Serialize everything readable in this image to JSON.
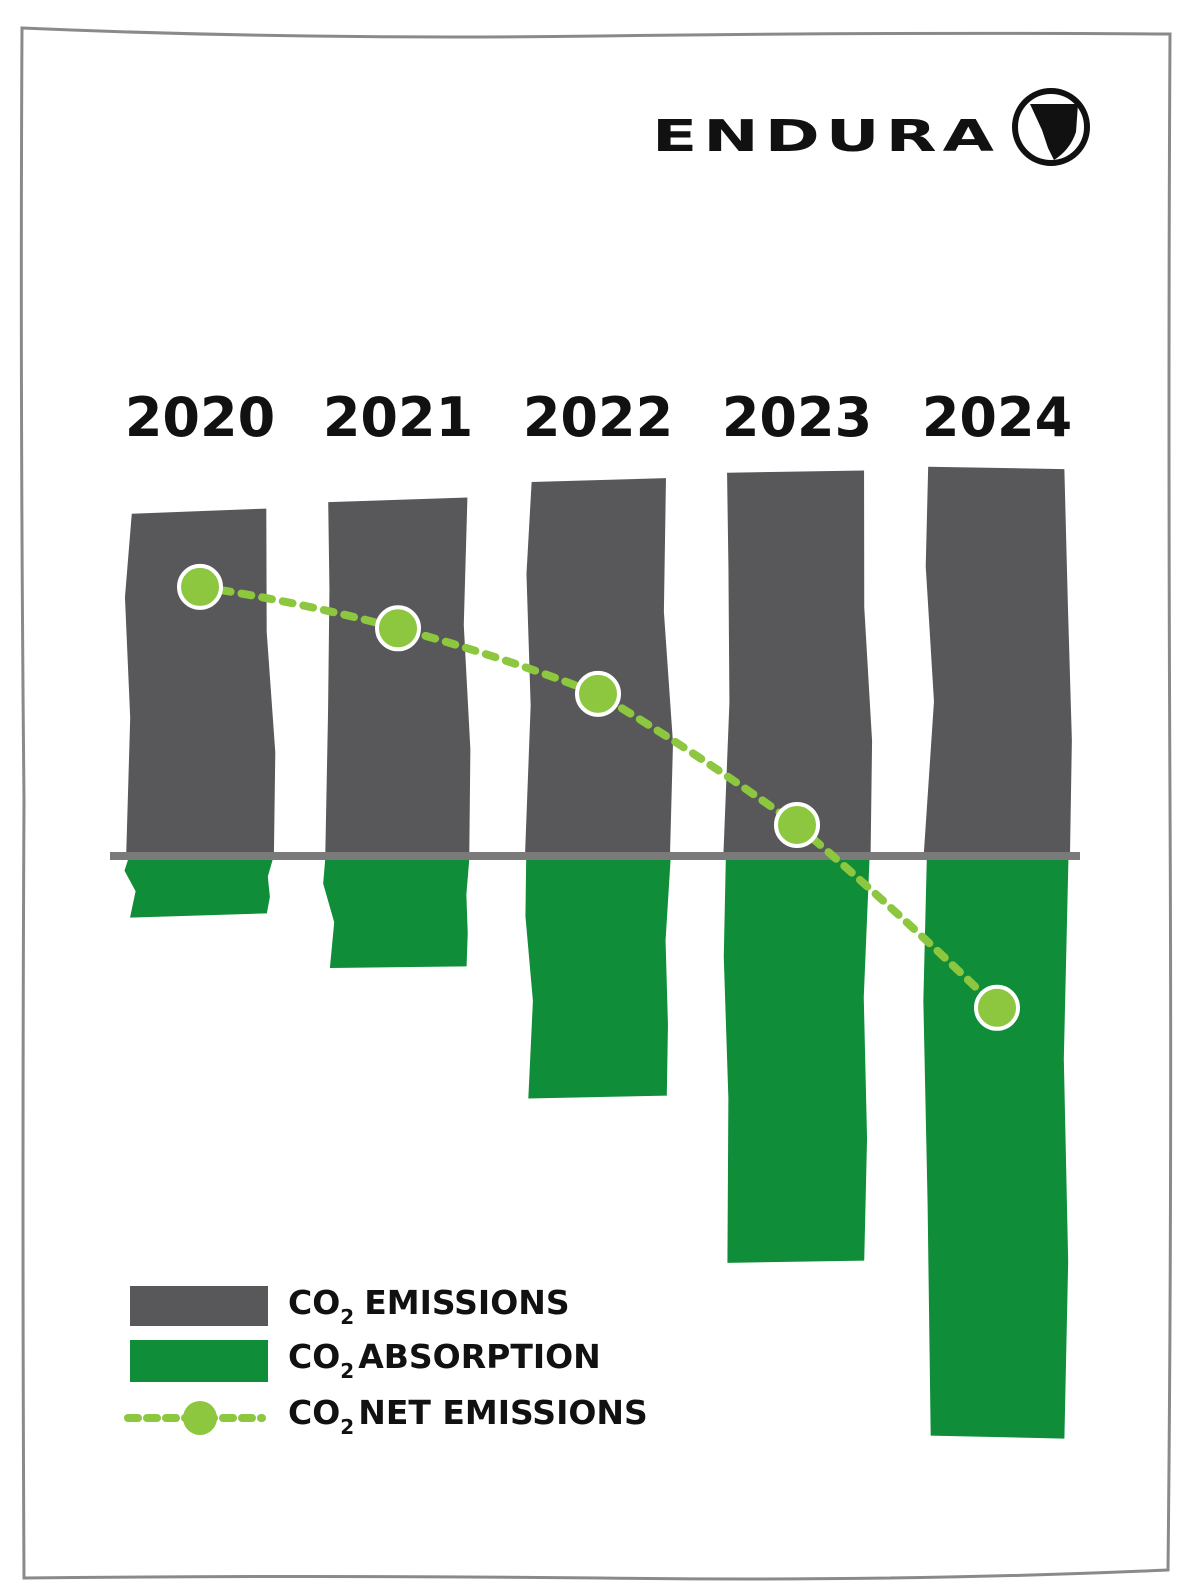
{
  "brand": {
    "name": "ENDURA"
  },
  "colors": {
    "emissions": "#58585a",
    "absorption": "#0f8d38",
    "net": "#8dc63f",
    "baseline": "#7a7a7a",
    "text": "#111111",
    "frame": "#8a8a8a"
  },
  "chart_data": {
    "type": "bar",
    "categories": [
      "2020",
      "2021",
      "2022",
      "2023",
      "2024"
    ],
    "series": [
      {
        "name": "EMISSIONS",
        "values": [
          100,
          103,
          109,
          111,
          112
        ]
      },
      {
        "name": "ABSORPTION",
        "values": [
          -17,
          -32,
          -70,
          -117,
          -168
        ]
      },
      {
        "name": "NET EMISSIONS",
        "values": [
          78,
          66,
          47,
          9,
          -44
        ]
      }
    ],
    "ylim": [
      -170,
      120
    ],
    "grid": false,
    "legend": "bottom-left",
    "title": "",
    "xlabel": "",
    "ylabel": ""
  },
  "legend": {
    "items": [
      {
        "prefix": "CO",
        "sub": "2",
        "label": "EMISSIONS"
      },
      {
        "prefix": "CO",
        "sub": "2",
        "label": "ABSORPTION"
      },
      {
        "prefix": "CO",
        "sub": "2",
        "label": "NET EMISSIONS"
      }
    ]
  }
}
